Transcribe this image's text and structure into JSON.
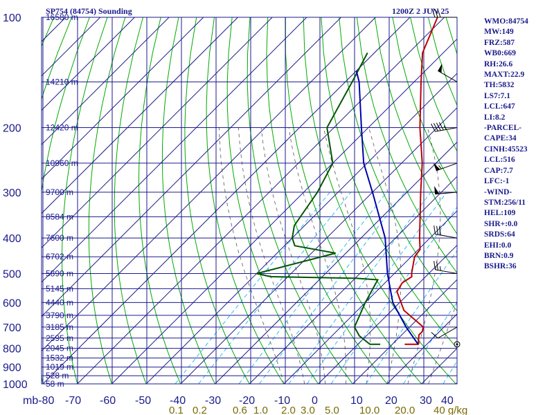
{
  "header": {
    "title": "SP754 (84754) Sounding",
    "datetime": "1200Z  2 JUN 25"
  },
  "indices": [
    "WMO:84754",
    "MW:149",
    "FRZ:587",
    "WB0:669",
    "RH:26.6",
    "MAXT:22.9",
    "TH:5832",
    "LS7:7.1",
    "LCL:647",
    "LI:8.2",
    "-PARCEL-",
    "CAPE:34",
    "CINH:45523",
    "LCL:516",
    "CAP:7.7",
    "LFC:-1",
    "-WIND-",
    "STM:256/11",
    "HEL:109",
    "SHR+:0.0",
    "SRDS:64",
    "EHI:0.0",
    "BRN:0.9",
    "BSHR:36"
  ],
  "colors": {
    "border": "#1a1a8c",
    "isobar": "#1a1a8c",
    "isotherm": "#1a1a8c",
    "dry_adiabat": "#00aa00",
    "moist_adiabat": "#555555",
    "mixing_ratio": "#00aaee",
    "temperature": "#bb0000",
    "dewpoint": "#005500",
    "parcel": "#0000aa",
    "temp_labels": "#1a1a8c",
    "mixing_labels": "#7a6a00"
  },
  "chart_data": {
    "type": "line",
    "title": "SP754 (84754) Sounding",
    "subtitle": "1200Z  2 JUN 25",
    "x_axis": {
      "unit": "C",
      "range": [
        -80,
        40
      ],
      "ticks": [
        -80,
        -70,
        -60,
        -50,
        -40,
        -30,
        -20,
        -10,
        0,
        10,
        20,
        30,
        40
      ],
      "labels": [
        "mb-80",
        "-70",
        "-60",
        "-50",
        "-40",
        "-30",
        "-20",
        "-10",
        "0",
        "10",
        "20",
        "30",
        "40"
      ]
    },
    "y_axis": {
      "unit": "mb",
      "scale": "log",
      "range": [
        1000,
        100
      ],
      "ticks": [
        100,
        200,
        300,
        400,
        500,
        600,
        700,
        800,
        900,
        1000
      ],
      "labels": [
        "100",
        "200",
        "300",
        "400",
        "500",
        "600",
        "700",
        "800",
        "900",
        "1000"
      ]
    },
    "mixing_ratio_labels": [
      "0.1",
      "0.2",
      "0.6",
      "1.0",
      "2.0",
      "3.0",
      "5.0",
      "10.0",
      "20.0",
      "40 g/kg"
    ],
    "mixing_ratio_values": [
      0.1,
      0.2,
      0.6,
      1.0,
      2.0,
      3.0,
      5.0,
      10.0,
      20.0,
      40.0
    ],
    "height_labels": [
      {
        "p": 100,
        "label": "16580 m"
      },
      {
        "p": 150,
        "label": "14210 m"
      },
      {
        "p": 200,
        "label": "12420 m"
      },
      {
        "p": 250,
        "label": "10960 m"
      },
      {
        "p": 300,
        "label": "9700 m"
      },
      {
        "p": 350,
        "label": "8584 m"
      },
      {
        "p": 400,
        "label": "7600 m"
      },
      {
        "p": 450,
        "label": "6702 m"
      },
      {
        "p": 500,
        "label": "5890 m"
      },
      {
        "p": 550,
        "label": "5145 m"
      },
      {
        "p": 600,
        "label": "4440 m"
      },
      {
        "p": 650,
        "label": "3790 m"
      },
      {
        "p": 700,
        "label": "3185 m"
      },
      {
        "p": 750,
        "label": "2595 m"
      },
      {
        "p": 800,
        "label": "2045 m"
      },
      {
        "p": 850,
        "label": "1532 m"
      },
      {
        "p": 900,
        "label": "1019 m"
      },
      {
        "p": 950,
        "label": "528 m"
      },
      {
        "p": 1000,
        "label": "58 m"
      }
    ],
    "series": [
      {
        "name": "Temperature",
        "points": [
          {
            "p": 780,
            "t": 13.6
          },
          {
            "p": 780,
            "t": 17.5
          },
          {
            "p": 735,
            "t": 15.0
          },
          {
            "p": 720,
            "t": 15.0
          },
          {
            "p": 700,
            "t": 14.0
          },
          {
            "p": 630,
            "t": 3.5
          },
          {
            "p": 560,
            "t": -4.0
          },
          {
            "p": 530,
            "t": -5.0
          },
          {
            "p": 510,
            "t": -4.0
          },
          {
            "p": 500,
            "t": -5.0
          },
          {
            "p": 450,
            "t": -9.0
          },
          {
            "p": 430,
            "t": -9.5
          },
          {
            "p": 400,
            "t": -13.0
          },
          {
            "p": 300,
            "t": -26.0
          },
          {
            "p": 250,
            "t": -34.0
          },
          {
            "p": 200,
            "t": -45.0
          },
          {
            "p": 150,
            "t": -58.0
          },
          {
            "p": 125,
            "t": -66.0
          },
          {
            "p": 100,
            "t": -72.0
          }
        ]
      },
      {
        "name": "Dewpoint",
        "points": [
          {
            "p": 780,
            "t": 6.5
          },
          {
            "p": 780,
            "t": 3.5
          },
          {
            "p": 740,
            "t": -2.0
          },
          {
            "p": 700,
            "t": -6.0
          },
          {
            "p": 600,
            "t": -10.0
          },
          {
            "p": 520,
            "t": -13.0
          },
          {
            "p": 515,
            "t": -20.0
          },
          {
            "p": 510,
            "t": -45.0
          },
          {
            "p": 500,
            "t": -50.0
          },
          {
            "p": 440,
            "t": -33.0
          },
          {
            "p": 420,
            "t": -47.0
          },
          {
            "p": 400,
            "t": -50.0
          },
          {
            "p": 370,
            "t": -53.0
          },
          {
            "p": 300,
            "t": -56.0
          },
          {
            "p": 250,
            "t": -60.0
          },
          {
            "p": 200,
            "t": -72.0
          },
          {
            "p": 150,
            "t": -78.0
          },
          {
            "p": 125,
            "t": -82.0
          }
        ]
      },
      {
        "name": "Parcel",
        "points": [
          {
            "p": 780,
            "t": 17.5
          },
          {
            "p": 700,
            "t": 9.0
          },
          {
            "p": 600,
            "t": -2.0
          },
          {
            "p": 500,
            "t": -12.0
          },
          {
            "p": 400,
            "t": -23.0
          },
          {
            "p": 300,
            "t": -40.0
          },
          {
            "p": 250,
            "t": -51.0
          },
          {
            "p": 200,
            "t": -62.0
          },
          {
            "p": 150,
            "t": -76.0
          },
          {
            "p": 140,
            "t": -80.0
          }
        ]
      }
    ],
    "wind_barbs": [
      {
        "p": 100,
        "dir": 270,
        "speed": 30
      },
      {
        "p": 150,
        "dir": 300,
        "speed": 50
      },
      {
        "p": 200,
        "dir": 260,
        "speed": 45
      },
      {
        "p": 250,
        "dir": 250,
        "speed": 55
      },
      {
        "p": 300,
        "dir": 265,
        "speed": 50
      },
      {
        "p": 400,
        "dir": 280,
        "speed": 30
      },
      {
        "p": 500,
        "dir": 280,
        "speed": 25
      },
      {
        "p": 700,
        "dir": 240,
        "speed": 10
      },
      {
        "p": 780,
        "dir": 0,
        "speed": 0
      }
    ]
  }
}
